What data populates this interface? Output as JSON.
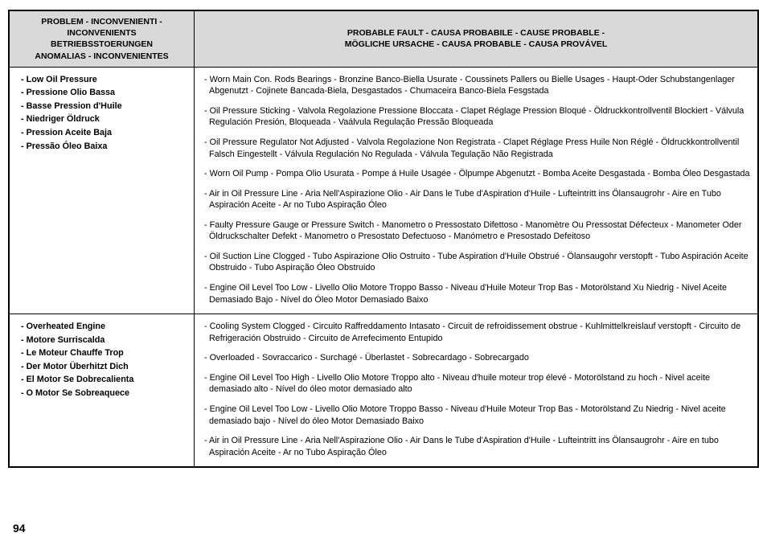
{
  "pageNumber": "94",
  "header": {
    "problemTitle": "PROBLEM - INCONVENIENTI - INCONVENIENTS\nBETRIEBSSTOERUNGEN\nANOMALIAS - INCONVENIENTES",
    "causeTitle": "PROBABLE FAULT - CAUSA PROBABILE - CAUSE PROBABLE -\nMÖGLICHE URSACHE - CAUSA PROBABLE - CAUSA PROVÁVEL"
  },
  "rows": [
    {
      "problems": [
        "- Low Oil Pressure",
        "- Pressione Olio Bassa",
        "- Basse Pression d'Huile",
        "- Niedriger Öldruck",
        "- Pression Aceite Baja",
        "- Pressão Óleo Baixa"
      ],
      "causes": [
        "- Worn Main Con. Rods Bearings - Bronzine Banco-Biella Usurate - Coussinets Pallers ou Bielle Usages - Haupt-Oder Schubstangenlager Abgenutzt - Cojinete Bancada-Biela, Desgastados - Chumaceira Banco-Biela Fesgstada",
        "- Oil Pressure Sticking - Valvola Regolazione Pressione Bloccata - Clapet Réglage Pression Bloqué - Öldruckkontrollventil Blockiert - Válvula Regulación Presión, Bloqueada - Vaálvula Regulação Pressão Bloqueada",
        "- Oil Pressure Regulator Not Adjusted - Valvola Regolazione Non Registrata - Clapet Réglage Press Huile Non Réglé - Öldruckkontrollventil Falsch Eingestellt - Válvula Regulación No Regulada - Válvula Tegulação Não Registrada",
        "- Worn Oil Pump - Pompa Olio Usurata - Pompe á Huile Usagée - Ölpumpe Abgenutzt - Bomba Aceite Desgastada - Bomba Óleo Desgastada",
        "- Air in Oil Pressure Line - Aria Nell'Aspirazione Olio - Air Dans le Tube d'Aspiration d'Huile - Lufteintritt ins Ölansaugrohr - Aire en Tubo Aspiración Aceite - Ar no Tubo Aspiração Óleo",
        "- Faulty Pressure Gauge or Pressure Switch - Manometro o Pressostato Difettoso - Manomètre Ou Pressostat Défecteux  - Manometer Oder Öldruckschalter Defekt - Manometro o Presostato Defectuoso - Manómetro e Presostado Defeitoso",
        "- Oil Suction Line Clogged - Tubo Aspirazione Olio Ostruito - Tube Aspiration d'Huile Obstrué - Ölansaugohr verstopft - Tubo Aspiración Aceite Obstruido - Tubo Aspiração Óleo Obstruido",
        "- Engine Oil Level Too Low - Livello Olio Motore Troppo Basso - Niveau d'Huile Moteur Trop Bas - Motorölstand Xu Niedrig - Nivel Aceite Demasiado Bajo - Nível do Óleo Motor Demasiado Baixo"
      ]
    },
    {
      "problems": [
        "- Overheated Engine",
        "- Motore Surriscalda",
        "- Le Moteur Chauffe Trop",
        "- Der Motor Überhitzt Dich",
        "- El Motor Se Dobrecalienta",
        "- O Motor Se Sobreaquece"
      ],
      "causes": [
        "- Cooling System Clogged - Circuito Raffreddamento Intasato - Circuit de refroidissement obstrue - Kuhlmittelkreislauf verstopft - Circuito de Refrigeración Obstruido - Circuito de Arrefecimento Entupido",
        "- Overloaded - Sovraccarico - Surchagé - Überlastet - Sobrecardago - Sobrecargado",
        "- Engine Oil Level Too High - Livello Olio Motore Troppo alto - Niveau d'huile moteur trop élevé - Motorölstand zu hoch - Nivel aceite demasiado alto - Nível do óleo motor demasiado alto",
        "- Engine Oil Level Too Low - Livello Olio Motore Troppo Basso - Niveau d'Huile Moteur Trop Bas - Motorölstand Zu Niedrig - Nivel aceite demasiado bajo - Nível do óleo Motor Demasiado Baixo",
        "- Air in Oil Pressure Line - Aria Nell'Aspirazione Olio - Air Dans le Tube d'Aspiration d'Huile - Lufteintritt ins Ölansaugrohr - Aire en tubo Aspiración Aceite - Ar no Tubo Aspiração Óleo"
      ]
    }
  ]
}
